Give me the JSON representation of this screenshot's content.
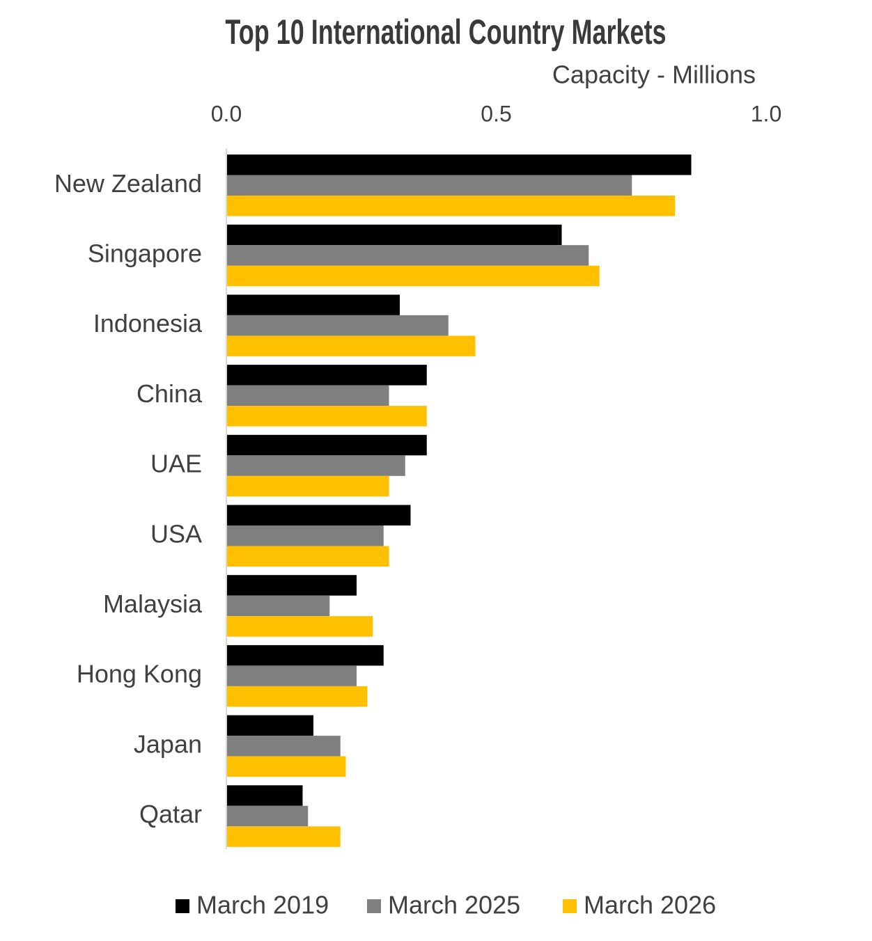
{
  "chart_data": {
    "type": "hbar",
    "title": "Top 10 International Country Markets",
    "subtitle": "Capacity - Millions",
    "categories": [
      "New Zealand",
      "Singapore",
      "Indonesia",
      "China",
      "UAE",
      "USA",
      "Malaysia",
      "Hong Kong",
      "Japan",
      "Qatar"
    ],
    "series": [
      {
        "name": "March 2019",
        "color": "#000000",
        "values": [
          0.86,
          0.62,
          0.32,
          0.37,
          0.37,
          0.34,
          0.24,
          0.29,
          0.16,
          0.14
        ]
      },
      {
        "name": "March 2025",
        "color": "#7f7f7f",
        "values": [
          0.75,
          0.67,
          0.41,
          0.3,
          0.33,
          0.29,
          0.19,
          0.24,
          0.21,
          0.15
        ]
      },
      {
        "name": "March 2026",
        "color": "#ffc000",
        "values": [
          0.83,
          0.69,
          0.46,
          0.37,
          0.3,
          0.3,
          0.27,
          0.26,
          0.22,
          0.21
        ]
      }
    ],
    "xlim": [
      0,
      1
    ],
    "xticks": [
      {
        "value": 0,
        "label": "0.0"
      },
      0.5,
      {
        "value": 1,
        "label": "1.0"
      }
    ],
    "grid": false,
    "legend": "bottom"
  }
}
